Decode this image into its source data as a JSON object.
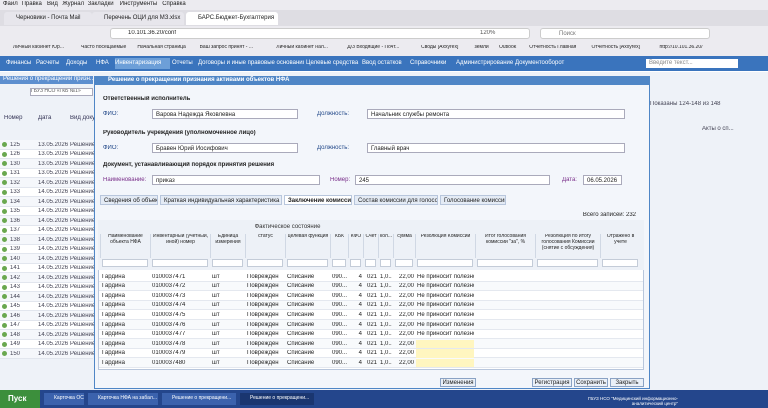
{
  "browser": {
    "menu": [
      "Файл",
      "Правка",
      "Вид",
      "Журнал",
      "Закладки",
      "Инструменты",
      "Справка"
    ],
    "tabs": [
      "Черновики - Почта Mail",
      "Перечень ОЦИ для МЗ.xlsx",
      "БАРС.Бюджет-Бухгалтерия"
    ],
    "url": "10.101.36.20/conf",
    "zoom": "120%",
    "search": "Поиск",
    "bookmarks": [
      "Личный кабинет Юр...",
      "Часто посещаемые",
      "Начальная страница",
      "Ваш запрос принят - ...",
      "Личный кабинет нал...",
      "Д/З Входящие - Почт...",
      "Своды [Axxуrex]",
      "земли",
      "Outlook",
      "Отчетность Главная",
      "Отчетность [Axxуrex]",
      "http://10.101.36.20/"
    ]
  },
  "app": {
    "nav": [
      "Финансы",
      "Расчеты",
      "Доходы",
      "НФА",
      "Инвентаризация",
      "Отчеты",
      "Договоры и иные правовые основания",
      "Целевые средства",
      "Ввод остатков",
      "Справочники",
      "Администрирование",
      "Документооборот"
    ],
    "search_placeholder": "Введите текст..."
  },
  "background": {
    "title": "Решения о прекращении призн...",
    "org": "ГБУЗ НСО «ГКБ №1»",
    "columns": [
      "Номер",
      "Дата",
      "Вид доку"
    ],
    "rows": [
      [
        "125",
        "13.05.2026",
        "Решение"
      ],
      [
        "126",
        "13.05.2026",
        "Решение"
      ],
      [
        "130",
        "13.05.2026",
        "Решение"
      ],
      [
        "131",
        "13.05.2026",
        "Решение"
      ],
      [
        "132",
        "14.05.2026",
        "Решение"
      ],
      [
        "133",
        "14.05.2026",
        "Решение"
      ],
      [
        "134",
        "14.05.2026",
        "Решение"
      ],
      [
        "135",
        "14.05.2026",
        "Решение"
      ],
      [
        "136",
        "14.05.2026",
        "Решение"
      ],
      [
        "137",
        "14.05.2026",
        "Решение"
      ],
      [
        "138",
        "14.05.2026",
        "Решение"
      ],
      [
        "139",
        "14.05.2026",
        "Решение"
      ],
      [
        "140",
        "14.05.2026",
        "Решение"
      ],
      [
        "141",
        "14.05.2026",
        "Решение"
      ],
      [
        "142",
        "14.05.2026",
        "Решение"
      ],
      [
        "143",
        "14.05.2026",
        "Решение"
      ],
      [
        "144",
        "14.05.2026",
        "Решение"
      ],
      [
        "145",
        "14.05.2026",
        "Решение"
      ],
      [
        "146",
        "14.05.2026",
        "Решение"
      ],
      [
        "147",
        "14.05.2026",
        "Решение"
      ],
      [
        "148",
        "14.05.2026",
        "Решение"
      ],
      [
        "149",
        "14.05.2026",
        "Решение"
      ],
      [
        "150",
        "14.05.2026",
        "Решение"
      ]
    ],
    "right_info": "Показаны 124-148 из 148",
    "right_col": "Акты о сп..."
  },
  "dialog": {
    "title": "Решение о прекращении признания активами объектов НФА",
    "section1": "Ответственный исполнитель",
    "fio_label": "ФИО:",
    "fio1": "Варова Надежда Яковлевна",
    "post_label": "Должность:",
    "post1": "Начальник службы ремонта",
    "section2": "Руководитель учреждения (уполномоченное лицо)",
    "fio2": "Бравен Юрий Иосифович",
    "post2": "Главный врач",
    "section3": "Документ, устанавливающий порядок принятия решения",
    "name_label": "Наименование:",
    "name": "приказ",
    "num_label": "Номер:",
    "num": "245",
    "date_label": "Дата:",
    "date": "06.05.2026",
    "tabs": [
      "Сведения об объекте",
      "Краткая индивидуальная характеристика объекта",
      "Заключение комиссии",
      "Состав комиссии для голосования",
      "Голосование комиссии"
    ],
    "total": "Всего записей: 232",
    "group_header": "Фактическое состояние",
    "columns": [
      "Наименование объекта НФА",
      "Инвентарный (учетный, иной) номер",
      "Единица измерения",
      "статус",
      "целевая функция",
      "КБК",
      "КФО",
      "Счет",
      "кол...",
      "сумма",
      "Резолюция Комиссии",
      "Итог голосования комиссии \"за\", %",
      "Резолюция по итогу голосования Комиссии (снятие с обсуждения)",
      "Отражено в учете"
    ],
    "rows": [
      [
        "Гардина",
        "0100037471",
        "шт",
        "Поврежден",
        "Списание",
        "090...",
        "4",
        "021",
        "1,0...",
        "22,00",
        "Не приносит полезног..."
      ],
      [
        "Гардина",
        "0100037472",
        "шт",
        "Поврежден",
        "Списание",
        "090...",
        "4",
        "021",
        "1,0...",
        "22,00",
        "Не приносит полезног..."
      ],
      [
        "Гардина",
        "0100037473",
        "шт",
        "Поврежден",
        "Списание",
        "090...",
        "4",
        "021",
        "1,0...",
        "22,00",
        "Не приносит полезног..."
      ],
      [
        "Гардина",
        "0100037474",
        "шт",
        "Поврежден",
        "Списание",
        "090...",
        "4",
        "021",
        "1,0...",
        "22,00",
        "Не приносит полезног..."
      ],
      [
        "Гардина",
        "0100037475",
        "шт",
        "Поврежден",
        "Списание",
        "090...",
        "4",
        "021",
        "1,0...",
        "22,00",
        "Не приносит полезног..."
      ],
      [
        "Гардина",
        "0100037476",
        "шт",
        "Поврежден",
        "Списание",
        "090...",
        "4",
        "021",
        "1,0...",
        "22,00",
        "Не приносит полезног..."
      ],
      [
        "Гардина",
        "0100037477",
        "шт",
        "Поврежден",
        "Списание",
        "090...",
        "4",
        "021",
        "1,0...",
        "22,00",
        "Не приносит полезног..."
      ],
      [
        "Гардина",
        "0100037478",
        "шт",
        "Поврежден",
        "Списание",
        "090...",
        "4",
        "021",
        "1,0...",
        "22,00"
      ],
      [
        "Гардина",
        "0100037479",
        "шт",
        "Поврежден",
        "Списание",
        "090...",
        "4",
        "021",
        "1,0...",
        "22,00"
      ],
      [
        "Гардина",
        "0100037480",
        "шт",
        "Поврежден",
        "Списание",
        "090...",
        "4",
        "021",
        "1,0...",
        "22,00"
      ]
    ],
    "buttons": [
      "Изменения",
      "Регистрация",
      "Сохранить",
      "Закрыть"
    ]
  },
  "taskbar": {
    "start": "Пуск",
    "items": [
      "Карточка ОС",
      "Карточка НФА на забал...",
      "Решение о прекращени...",
      "Решение о прекращени..."
    ],
    "tray": "ГБУЗ НСО \"Медицинский информационно-аналитический центр\""
  }
}
